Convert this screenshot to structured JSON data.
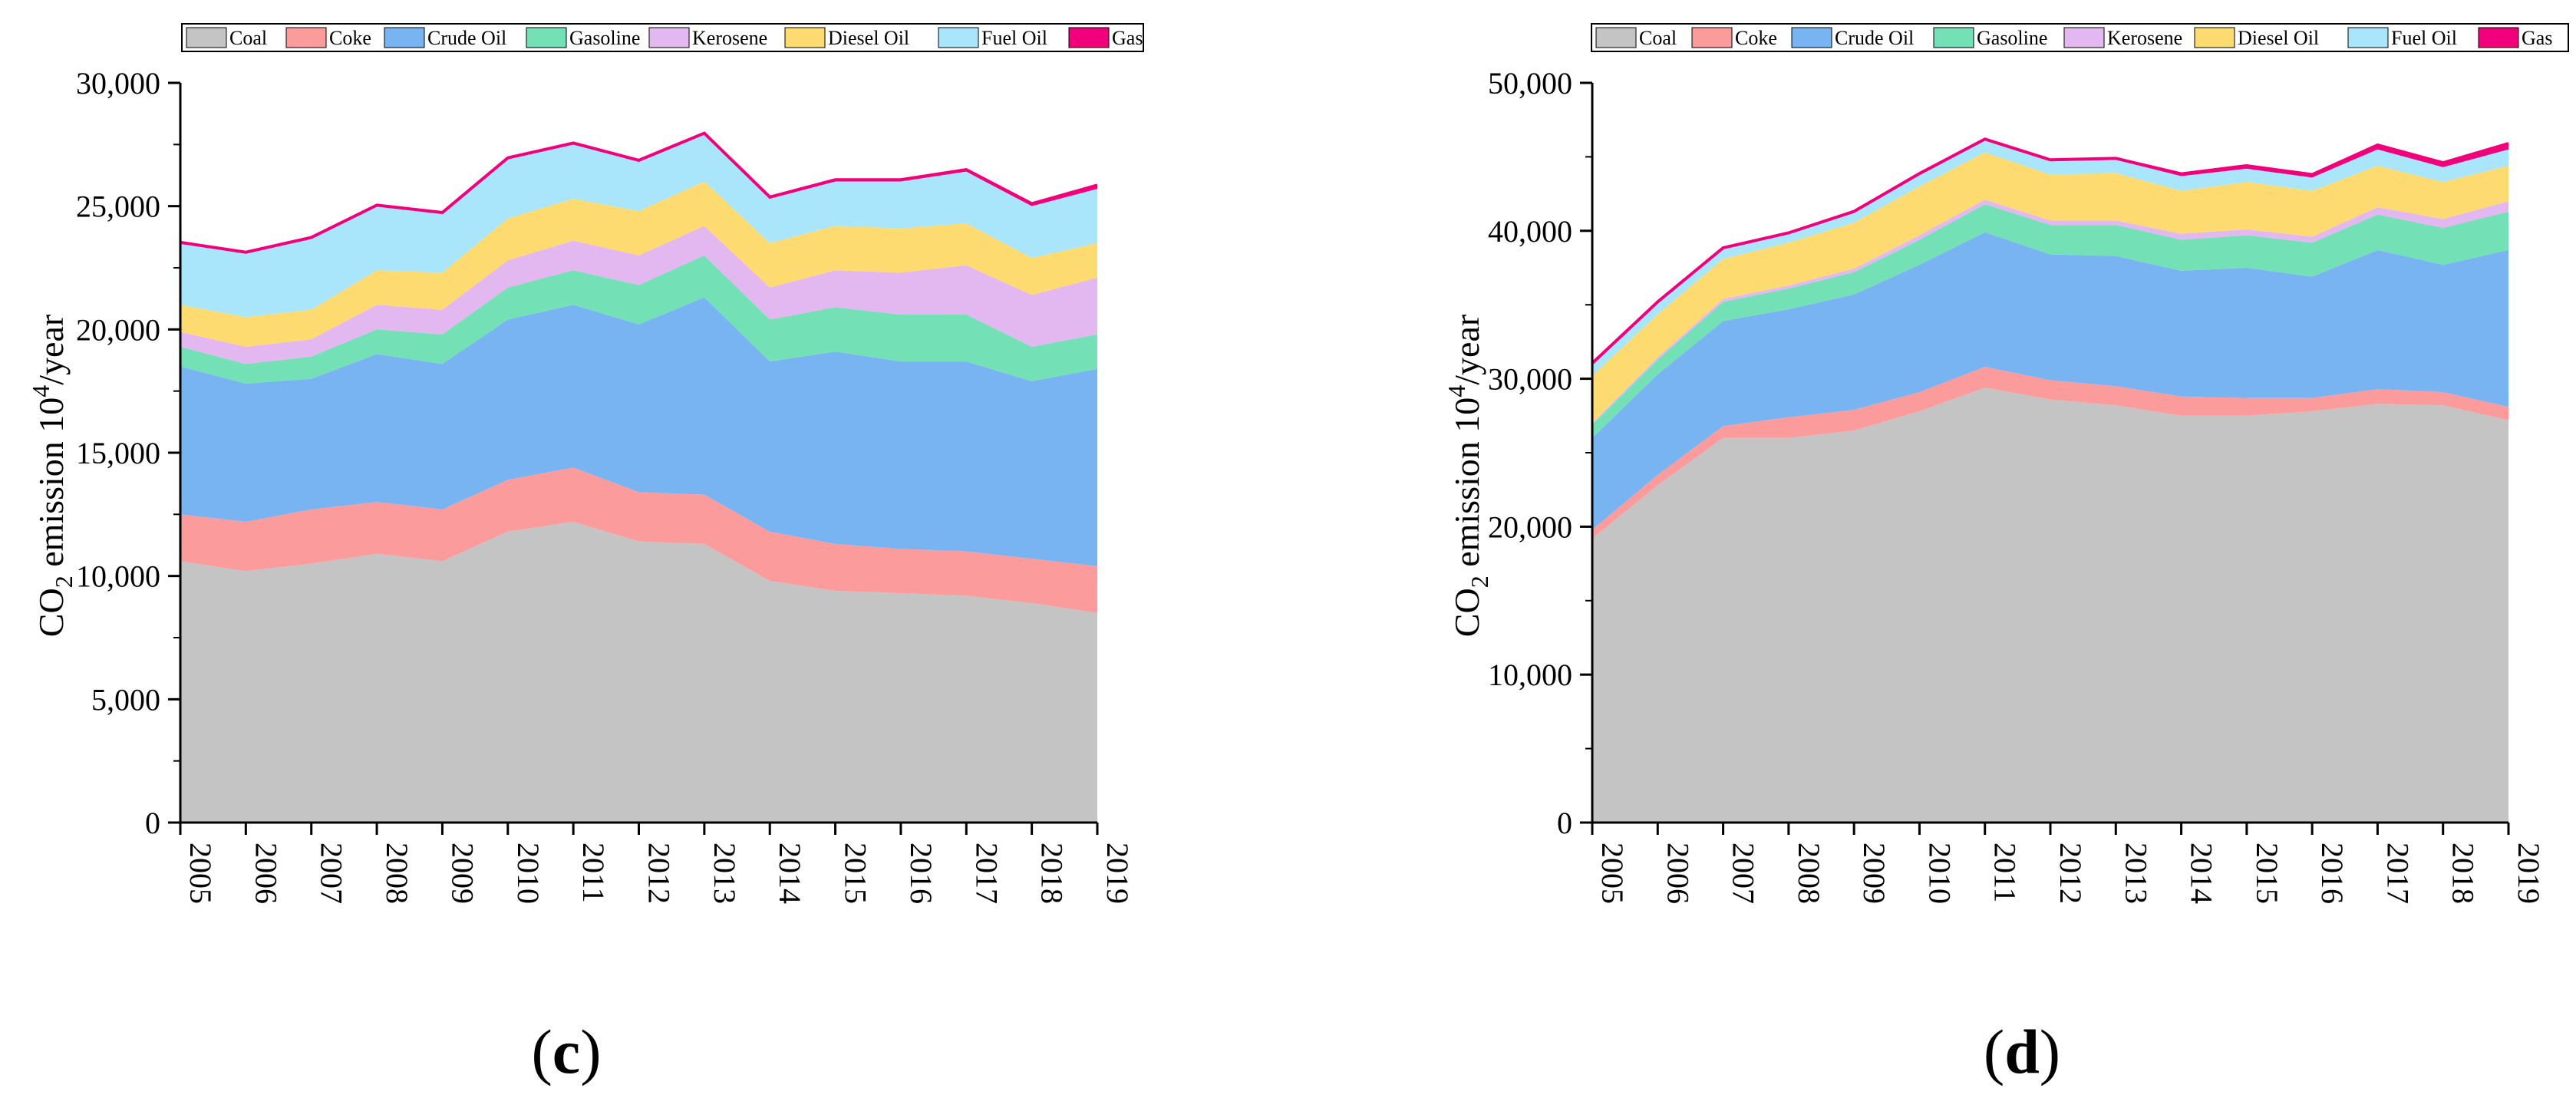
{
  "legend_swatch_colors": {
    "Coal": "#c4c4c4",
    "Coke": "#fc9b9b",
    "Crude Oil": "#78b4f2",
    "Gasoline": "#74e0b6",
    "Kerosene": "#e3b8f0",
    "Diesel Oil": "#fedb70",
    "Fuel Oil": "#a9e6fb",
    "Gas": "#f2007c"
  },
  "chart_data": [
    {
      "panel_label": "c",
      "type": "area",
      "stacked": true,
      "x": [
        "2005",
        "2006",
        "2007",
        "2008",
        "2009",
        "2010",
        "2011",
        "2012",
        "2013",
        "2014",
        "2015",
        "2016",
        "2017",
        "2018",
        "2019"
      ],
      "ylabel": {
        "prefix": "CO",
        "sub": "2",
        "middle": " emission 10",
        "sup": "4",
        "suffix": "/year"
      },
      "ylim": [
        0,
        30000
      ],
      "yticks": [
        "0",
        "5,000",
        "10,000",
        "15,000",
        "20,000",
        "25,000",
        "30,000"
      ],
      "legend_position": "top",
      "series": [
        {
          "name": "Coal",
          "values": [
            10600,
            10200,
            10500,
            10900,
            10600,
            11800,
            12200,
            11400,
            11300,
            9800,
            9400,
            9300,
            9200,
            8900,
            8500
          ]
        },
        {
          "name": "Coke",
          "values": [
            1900,
            2000,
            2200,
            2100,
            2100,
            2100,
            2200,
            2000,
            2000,
            2000,
            1900,
            1800,
            1800,
            1800,
            1900
          ]
        },
        {
          "name": "Crude Oil",
          "values": [
            6000,
            5600,
            5300,
            6000,
            5900,
            6500,
            6600,
            6800,
            8000,
            6900,
            7800,
            7600,
            7700,
            7200,
            8000
          ]
        },
        {
          "name": "Gasoline",
          "values": [
            800,
            800,
            900,
            1000,
            1200,
            1300,
            1400,
            1600,
            1700,
            1700,
            1800,
            1900,
            1900,
            1400,
            1400
          ]
        },
        {
          "name": "Kerosene",
          "values": [
            600,
            700,
            700,
            1000,
            1000,
            1100,
            1200,
            1200,
            1200,
            1300,
            1500,
            1700,
            2000,
            2100,
            2300
          ]
        },
        {
          "name": "Diesel Oil",
          "values": [
            1100,
            1200,
            1200,
            1400,
            1500,
            1700,
            1700,
            1800,
            1800,
            1800,
            1800,
            1800,
            1700,
            1500,
            1400
          ]
        },
        {
          "name": "Fuel Oil",
          "values": [
            2500,
            2600,
            2900,
            2600,
            2400,
            2400,
            2200,
            2000,
            1900,
            1800,
            1800,
            1900,
            2100,
            2100,
            2200
          ]
        },
        {
          "name": "Gas",
          "values": [
            30,
            30,
            30,
            40,
            40,
            60,
            60,
            60,
            60,
            70,
            70,
            70,
            80,
            100,
            150
          ]
        }
      ]
    },
    {
      "panel_label": "d",
      "type": "area",
      "stacked": true,
      "x": [
        "2005",
        "2006",
        "2007",
        "2008",
        "2009",
        "2010",
        "2011",
        "2012",
        "2013",
        "2014",
        "2015",
        "2016",
        "2017",
        "2018",
        "2019"
      ],
      "ylabel": {
        "prefix": "CO",
        "sub": "2",
        "middle": " emission 10",
        "sup": "4",
        "suffix": "/year"
      },
      "ylim": [
        0,
        50000
      ],
      "yticks": [
        "0",
        "10,000",
        "20,000",
        "30,000",
        "40,000",
        "50,000"
      ],
      "legend_position": "top",
      "series": [
        {
          "name": "Coal",
          "values": [
            19200,
            22800,
            26000,
            26000,
            26500,
            27800,
            29400,
            28600,
            28200,
            27500,
            27500,
            27800,
            28300,
            28200,
            27200
          ]
        },
        {
          "name": "Coke",
          "values": [
            600,
            700,
            800,
            1400,
            1400,
            1300,
            1400,
            1300,
            1300,
            1300,
            1200,
            900,
            1000,
            900,
            900
          ]
        },
        {
          "name": "Crude Oil",
          "values": [
            6200,
            6800,
            7100,
            7300,
            7800,
            8600,
            9100,
            8500,
            8800,
            8500,
            8800,
            8200,
            9400,
            8600,
            10600
          ]
        },
        {
          "name": "Gasoline",
          "values": [
            900,
            1000,
            1300,
            1400,
            1500,
            1700,
            1900,
            2000,
            2100,
            2100,
            2200,
            2300,
            2400,
            2500,
            2600
          ]
        },
        {
          "name": "Kerosene",
          "values": [
            100,
            150,
            200,
            200,
            250,
            300,
            300,
            300,
            300,
            400,
            400,
            400,
            500,
            600,
            700
          ]
        },
        {
          "name": "Diesel Oil",
          "values": [
            3200,
            2900,
            2700,
            2900,
            3100,
            3300,
            3200,
            3100,
            3200,
            2900,
            3200,
            3100,
            2800,
            2500,
            2400
          ]
        },
        {
          "name": "Fuel Oil",
          "values": [
            800,
            800,
            700,
            600,
            700,
            800,
            800,
            900,
            900,
            1000,
            900,
            900,
            1100,
            1000,
            1100
          ]
        },
        {
          "name": "Gas",
          "values": [
            50,
            50,
            50,
            60,
            60,
            70,
            100,
            100,
            100,
            150,
            200,
            200,
            300,
            300,
            400
          ]
        }
      ]
    }
  ]
}
